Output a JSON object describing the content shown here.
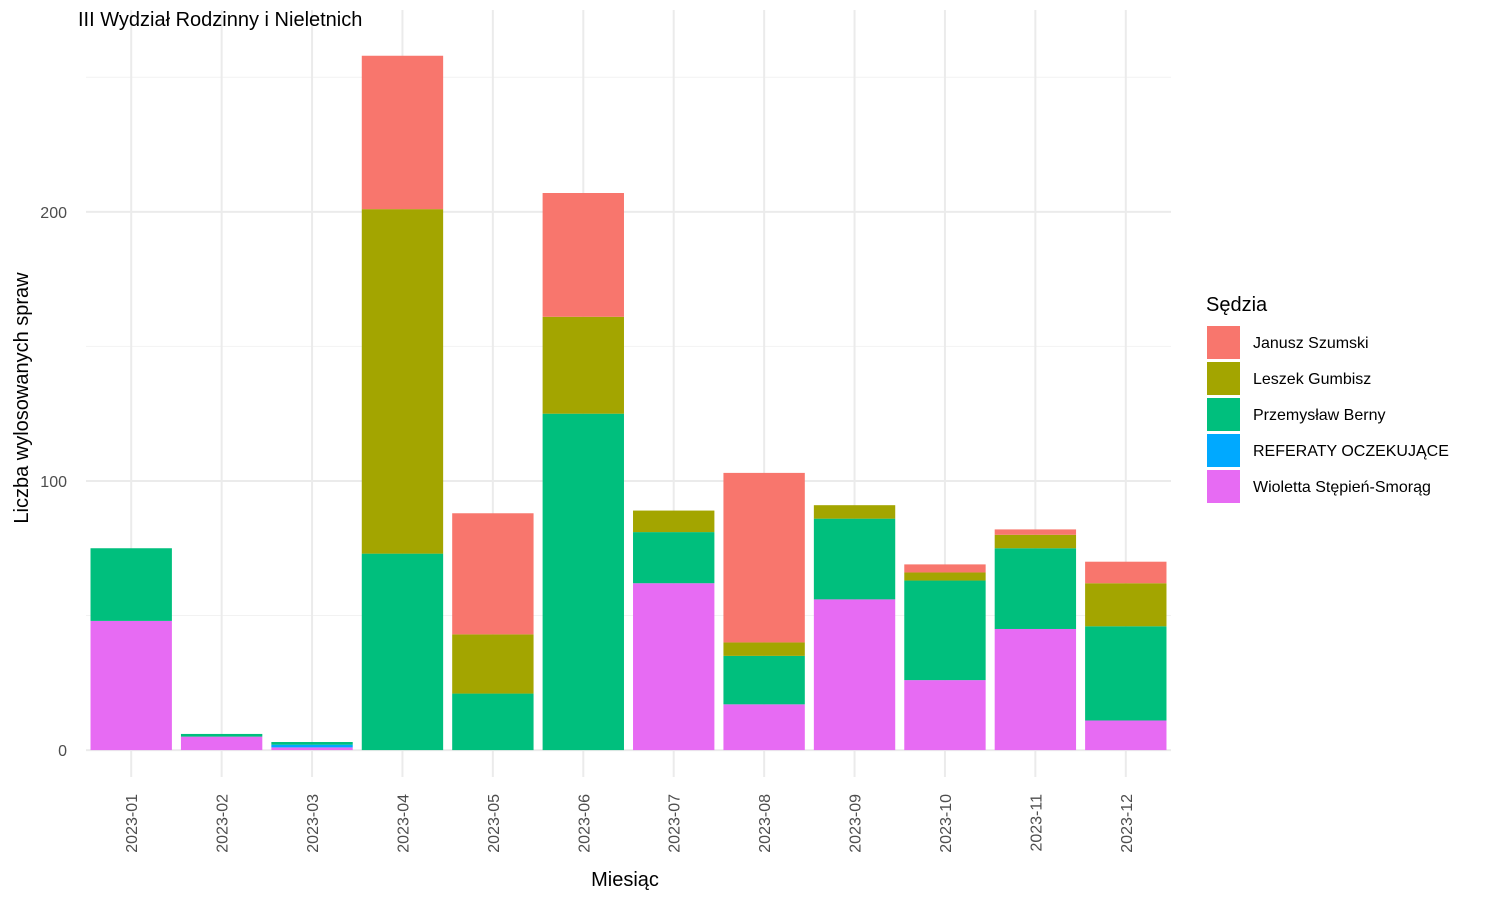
{
  "chart_data": {
    "type": "bar",
    "stacked": true,
    "title": "III Wydział Rodzinny i Nieletnich",
    "xlabel": "Miesiąc",
    "ylabel": "Liczba wylosowanych spraw",
    "ylim": [
      -10,
      275
    ],
    "yticks": [
      0,
      100,
      200
    ],
    "grid": true,
    "legend_position": "right",
    "legend_title": "Sędzia",
    "categories": [
      "2023-01",
      "2023-02",
      "2023-03",
      "2023-04",
      "2023-05",
      "2023-06",
      "2023-07",
      "2023-08",
      "2023-09",
      "2023-10",
      "2023-11",
      "2023-12"
    ],
    "series": [
      {
        "name": "Wioletta Stępień-Smorąg",
        "color": "#E76BF3",
        "values": [
          48,
          5,
          1,
          0,
          0,
          0,
          62,
          17,
          56,
          26,
          45,
          11
        ]
      },
      {
        "name": "REFERATY OCZEKUJĄCE",
        "color": "#00A9FF",
        "values": [
          0,
          0,
          1,
          0,
          0,
          0,
          0,
          0,
          0,
          0,
          0,
          0
        ]
      },
      {
        "name": "Przemysław Berny",
        "color": "#00BF7D",
        "values": [
          27,
          1,
          1,
          73,
          21,
          125,
          19,
          18,
          30,
          37,
          30,
          35
        ]
      },
      {
        "name": "Leszek Gumbisz",
        "color": "#A3A500",
        "values": [
          0,
          0,
          0,
          128,
          22,
          36,
          8,
          5,
          5,
          3,
          5,
          16
        ]
      },
      {
        "name": "Janusz Szumski",
        "color": "#F8766D",
        "values": [
          0,
          0,
          0,
          57,
          45,
          46,
          0,
          63,
          0,
          3,
          2,
          8
        ]
      }
    ],
    "legend_order": [
      "Janusz Szumski",
      "Leszek Gumbisz",
      "Przemysław Berny",
      "REFERATY OCZEKUJĄCE",
      "Wioletta Stępień-Smorąg"
    ]
  }
}
